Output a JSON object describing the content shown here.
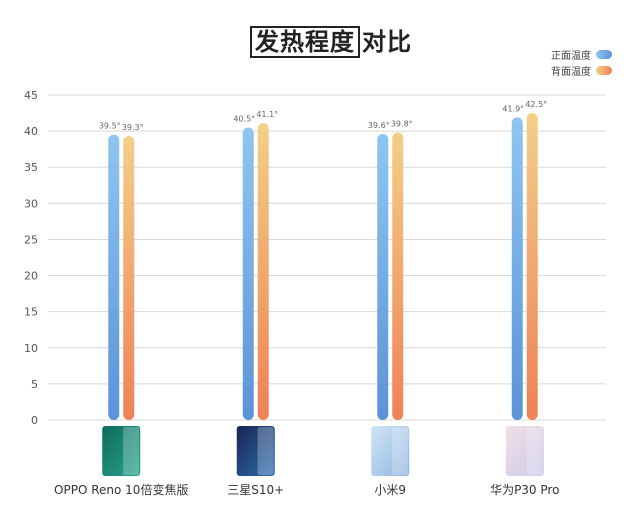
{
  "title": {
    "boxed_part": "发热程度",
    "rest_part": "对比"
  },
  "legend": [
    {
      "label": "正面温度",
      "color_top": "#8ec6f0",
      "color_bottom": "#5b93d8"
    },
    {
      "label": "背面温度",
      "color_top": "#f3cf86",
      "color_bottom": "#ef8157"
    }
  ],
  "chart_data": {
    "type": "bar",
    "title": "发热程度对比",
    "categories": [
      "OPPO Reno 10倍变焦版",
      "三星S10+",
      "小米9",
      "华为P30 Pro"
    ],
    "series": [
      {
        "name": "正面温度",
        "values": [
          39.5,
          40.5,
          39.6,
          41.9
        ]
      },
      {
        "name": "背面温度",
        "values": [
          39.3,
          41.1,
          39.8,
          42.5
        ]
      }
    ],
    "data_labels": [
      [
        "39.5°",
        "40.5°",
        "39.6°",
        "41.9°"
      ],
      [
        "39.3°",
        "41.1°",
        "39.8°",
        "42.5°"
      ]
    ],
    "yticks": [
      "0",
      "5",
      "10",
      "15",
      "20",
      "25",
      "30",
      "35",
      "40",
      "45"
    ],
    "ylim": [
      0,
      45
    ],
    "grid": true,
    "legend_position": "top-right",
    "xlabel": "",
    "ylabel": ""
  },
  "phone_colors": [
    [
      "#0d6b5e",
      "#2aa38c"
    ],
    [
      "#1a2350",
      "#2e6fb0"
    ],
    [
      "#cfe6f5",
      "#8fb5df"
    ],
    [
      "#f3dfe6",
      "#c9c9e8"
    ]
  ]
}
